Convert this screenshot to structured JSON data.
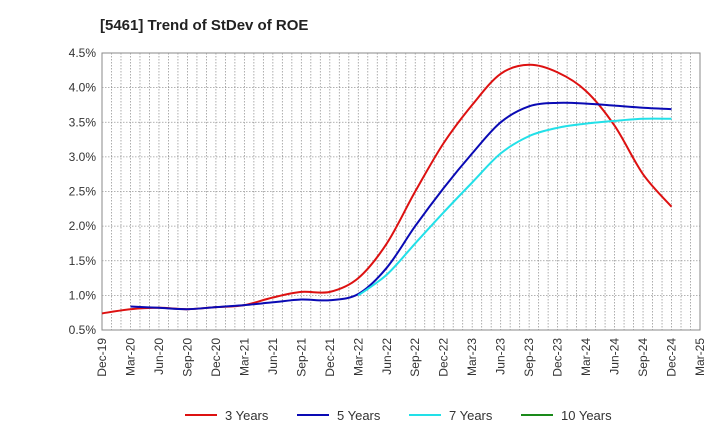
{
  "chart_data": {
    "type": "line",
    "title": "[5461]  Trend of StDev of ROE",
    "xlabel": "",
    "ylabel": "",
    "x": [
      "Dec-19",
      "Mar-20",
      "Jun-20",
      "Sep-20",
      "Dec-20",
      "Mar-21",
      "Jun-21",
      "Sep-21",
      "Dec-21",
      "Mar-22",
      "Jun-22",
      "Sep-22",
      "Dec-22",
      "Mar-23",
      "Jun-23",
      "Sep-23",
      "Dec-23",
      "Mar-24",
      "Jun-24",
      "Sep-24",
      "Dec-24",
      "Mar-25"
    ],
    "ylim": [
      0.5,
      4.5
    ],
    "yticks": [
      0.5,
      1.0,
      1.5,
      2.0,
      2.5,
      3.0,
      3.5,
      4.0,
      4.5
    ],
    "ytick_labels": [
      "0.5%",
      "1.0%",
      "1.5%",
      "2.0%",
      "2.5%",
      "3.0%",
      "3.5%",
      "4.0%",
      "4.5%"
    ],
    "grid": true,
    "legend_position": "bottom",
    "series": [
      {
        "name": "3 Years",
        "color": "#dd1111",
        "values": [
          0.74,
          0.8,
          0.82,
          0.8,
          0.83,
          0.86,
          0.97,
          1.05,
          1.05,
          1.25,
          1.75,
          2.5,
          3.2,
          3.75,
          4.2,
          4.33,
          4.22,
          3.95,
          3.45,
          2.75,
          2.28,
          null
        ]
      },
      {
        "name": "5 Years",
        "color": "#0a0ab4",
        "values": [
          null,
          0.84,
          0.82,
          0.8,
          0.83,
          0.86,
          0.9,
          0.94,
          0.93,
          1.02,
          1.4,
          2.0,
          2.55,
          3.05,
          3.5,
          3.73,
          3.78,
          3.77,
          3.74,
          3.71,
          3.69,
          null
        ]
      },
      {
        "name": "7 Years",
        "color": "#22e0e8",
        "values": [
          null,
          null,
          null,
          null,
          null,
          null,
          null,
          null,
          null,
          1.0,
          1.3,
          1.75,
          2.2,
          2.63,
          3.05,
          3.3,
          3.42,
          3.48,
          3.52,
          3.55,
          3.55,
          null
        ]
      },
      {
        "name": "10 Years",
        "color": "#1a8a1a",
        "values": [
          null,
          null,
          null,
          null,
          null,
          null,
          null,
          null,
          null,
          null,
          null,
          null,
          null,
          null,
          null,
          null,
          null,
          null,
          null,
          null,
          null,
          null
        ]
      }
    ]
  }
}
